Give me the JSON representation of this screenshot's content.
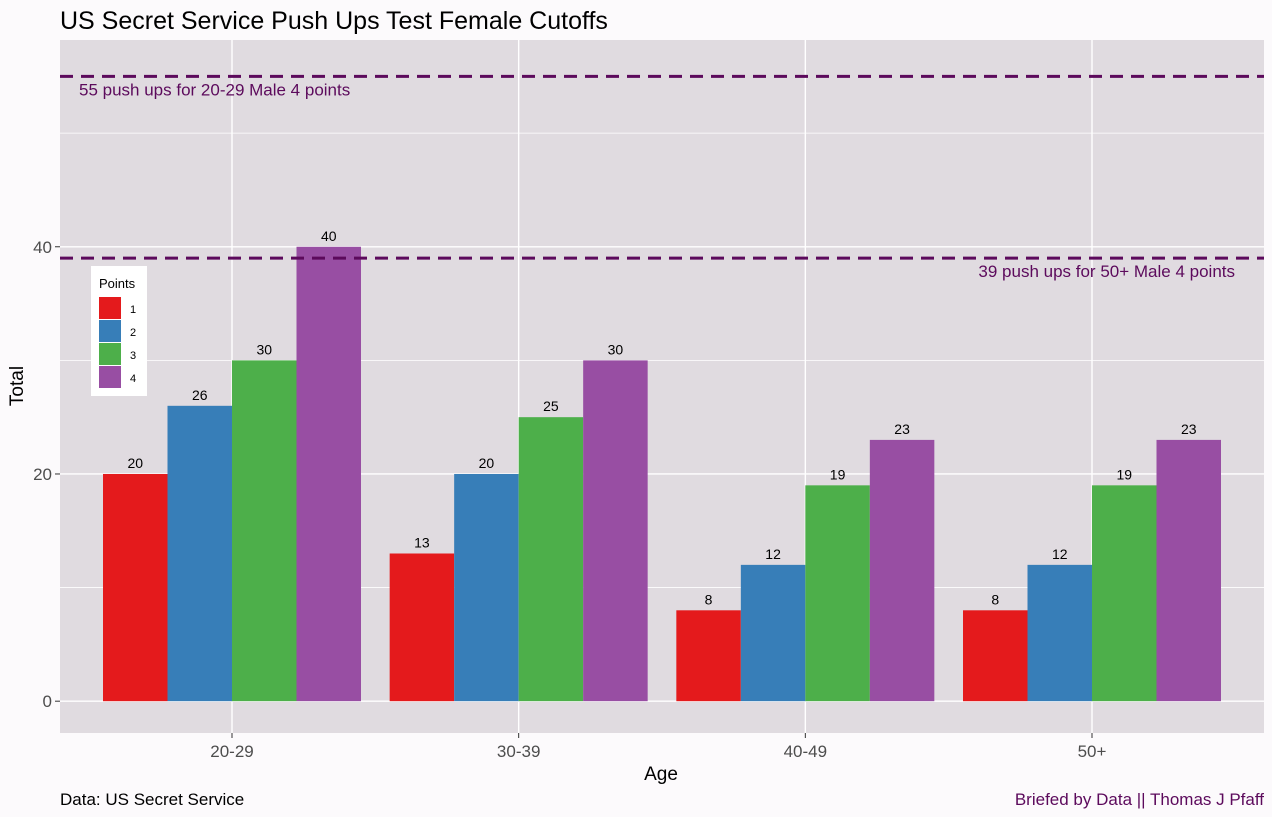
{
  "chart_data": {
    "type": "bar",
    "title": "US Secret Service Push Ups Test Female Cutoffs",
    "xlabel": "Age",
    "ylabel": "Total",
    "categories": [
      "20-29",
      "30-39",
      "40-49",
      "50+"
    ],
    "series": [
      {
        "name": "1",
        "color": "#e41a1c",
        "values": [
          20,
          13,
          8,
          8
        ]
      },
      {
        "name": "2",
        "color": "#377eb8",
        "values": [
          26,
          20,
          12,
          12
        ]
      },
      {
        "name": "3",
        "color": "#4daf4a",
        "values": [
          30,
          25,
          19,
          19
        ]
      },
      {
        "name": "4",
        "color": "#984ea3",
        "values": [
          40,
          30,
          23,
          23
        ]
      }
    ],
    "yticks": [
      0,
      20,
      40
    ],
    "ylim": [
      -2.8,
      58.2
    ],
    "grid": true,
    "legend": {
      "title": "Points",
      "position": "top-left"
    },
    "reference_lines": [
      {
        "value": 55,
        "label": "55 push ups for 20-29 Male 4 points",
        "color": "#5c0a5c",
        "label_anchor": "left"
      },
      {
        "value": 39,
        "label": "39 push ups for 50+ Male 4 points",
        "color": "#5c0a5c",
        "label_anchor": "right"
      }
    ]
  },
  "caption_left": "Data: US Secret Service",
  "caption_right": "Briefed by Data || Thomas J Pfaff",
  "caption_right_color": "#5c0a5c"
}
